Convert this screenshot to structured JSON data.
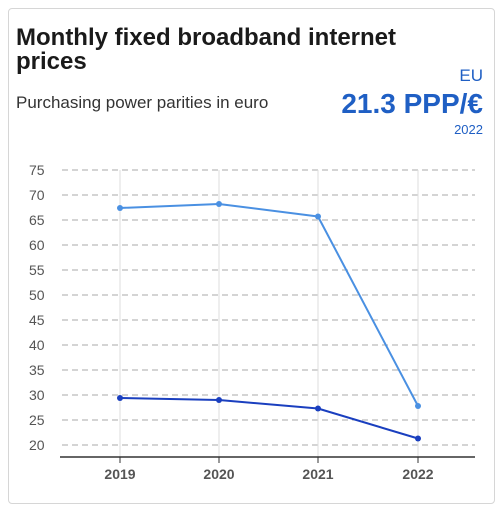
{
  "card": {
    "title": "Monthly fixed broadband internet prices",
    "subtitle": "Purchasing power parities in euro",
    "region": "EU",
    "kpi_value": "21.3 PPP/€",
    "kpi_year": "2022"
  },
  "colors": {
    "series_light": "#4a90e2",
    "series_dark": "#1a3fbf",
    "accent": "#1f5fc4",
    "grid": "#aaaaaa"
  },
  "chart_data": {
    "type": "line",
    "x": [
      "2019",
      "2020",
      "2021",
      "2022"
    ],
    "series": [
      {
        "values": [
          67.4,
          68.2,
          65.7,
          27.8
        ]
      },
      {
        "values": [
          29.4,
          29.0,
          27.3,
          21.3
        ]
      }
    ],
    "yticks": [
      "20",
      "25",
      "30",
      "35",
      "40",
      "45",
      "50",
      "55",
      "60",
      "65",
      "70",
      "75"
    ],
    "ylim": [
      20,
      75
    ],
    "grid": true,
    "grid_style": "dashed"
  }
}
